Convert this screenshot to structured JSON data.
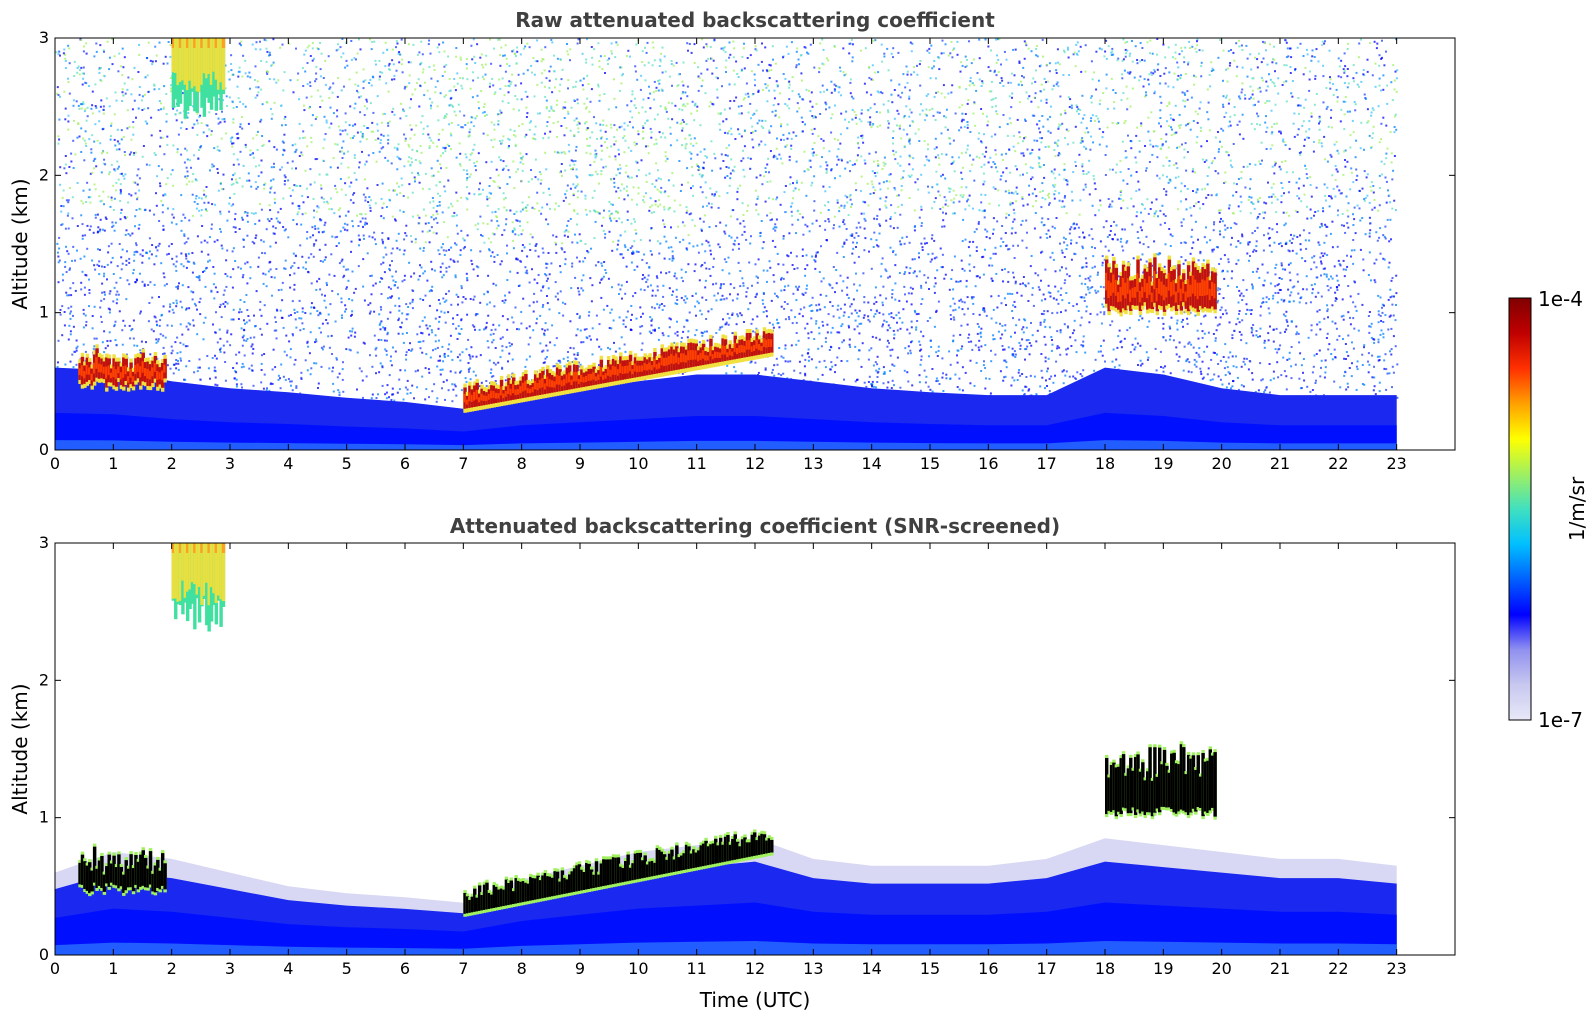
{
  "chart_data": [
    {
      "type": "heatmap",
      "title": "Raw attenuated backscattering coefficient",
      "xlabel": "",
      "ylabel": "Altitude (km)",
      "xlim": [
        0,
        24
      ],
      "ylim": [
        0,
        3
      ],
      "xticks": [
        0,
        1,
        2,
        3,
        4,
        5,
        6,
        7,
        8,
        9,
        10,
        11,
        12,
        13,
        14,
        15,
        16,
        17,
        18,
        19,
        20,
        21,
        22,
        23
      ],
      "yticks": [
        0,
        1,
        2,
        3
      ],
      "data_end_hour": 23,
      "boundary_layer_top_km": [
        0.6,
        0.58,
        0.5,
        0.45,
        0.42,
        0.38,
        0.35,
        0.3,
        0.4,
        0.45,
        0.5,
        0.55,
        0.55,
        0.5,
        0.45,
        0.42,
        0.4,
        0.4,
        0.6,
        0.55,
        0.45,
        0.4,
        0.4,
        0.4
      ],
      "features": [
        {
          "name": "high plume",
          "start_hour": 2.0,
          "end_hour": 2.9,
          "base_km": 2.4,
          "top_km": 3.0,
          "level": "yellow-green"
        },
        {
          "name": "early clouds",
          "start_hour": 0.4,
          "end_hour": 1.9,
          "base_km": 0.45,
          "top_km": 0.7,
          "level": "red"
        },
        {
          "name": "rising cloud band",
          "start_hour": 7.0,
          "end_hour": 12.3,
          "base_km": 0.3,
          "top_km": 0.85,
          "level": "red"
        },
        {
          "name": "evening clouds",
          "start_hour": 18.0,
          "end_hour": 19.9,
          "base_km": 1.0,
          "top_km": 1.4,
          "level": "red"
        }
      ]
    },
    {
      "type": "heatmap",
      "title": "Attenuated backscattering coefficient (SNR-screened)",
      "xlabel": "Time (UTC)",
      "ylabel": "Altitude (km)",
      "xlim": [
        0,
        24
      ],
      "ylim": [
        0,
        3
      ],
      "xticks": [
        0,
        1,
        2,
        3,
        4,
        5,
        6,
        7,
        8,
        9,
        10,
        11,
        12,
        13,
        14,
        15,
        16,
        17,
        18,
        19,
        20,
        21,
        22,
        23
      ],
      "yticks": [
        0,
        1,
        2,
        3
      ],
      "data_end_hour": 23,
      "boundary_layer_top_km": [
        0.6,
        0.75,
        0.7,
        0.6,
        0.5,
        0.45,
        0.42,
        0.38,
        0.55,
        0.65,
        0.75,
        0.8,
        0.85,
        0.7,
        0.65,
        0.65,
        0.65,
        0.7,
        0.85,
        0.8,
        0.75,
        0.7,
        0.7,
        0.65
      ],
      "features": [
        {
          "name": "high plume",
          "start_hour": 2.0,
          "end_hour": 2.9,
          "base_km": 2.35,
          "top_km": 3.0,
          "level": "yellow-green"
        },
        {
          "name": "early clouds",
          "start_hour": 0.4,
          "end_hour": 1.9,
          "base_km": 0.45,
          "top_km": 0.75,
          "level": "black-core"
        },
        {
          "name": "rising cloud band",
          "start_hour": 7.0,
          "end_hour": 12.3,
          "base_km": 0.3,
          "top_km": 0.9,
          "level": "black-core"
        },
        {
          "name": "evening clouds",
          "start_hour": 18.0,
          "end_hour": 19.9,
          "base_km": 1.0,
          "top_km": 1.55,
          "level": "black-core"
        }
      ]
    }
  ],
  "colorbar": {
    "label": "1/m/sr",
    "max_label": "1e-4",
    "min_label": "1e-7",
    "colors": [
      "#e8e8f8",
      "#c8c8f0",
      "#9090f0",
      "#0000ff",
      "#0060ff",
      "#00c0ff",
      "#40e0c0",
      "#a0f060",
      "#ffff00",
      "#ffa000",
      "#ff3000",
      "#c00000",
      "#800000"
    ]
  },
  "colors": {
    "cloud_black": "#000000",
    "title_gray": "#404040"
  }
}
